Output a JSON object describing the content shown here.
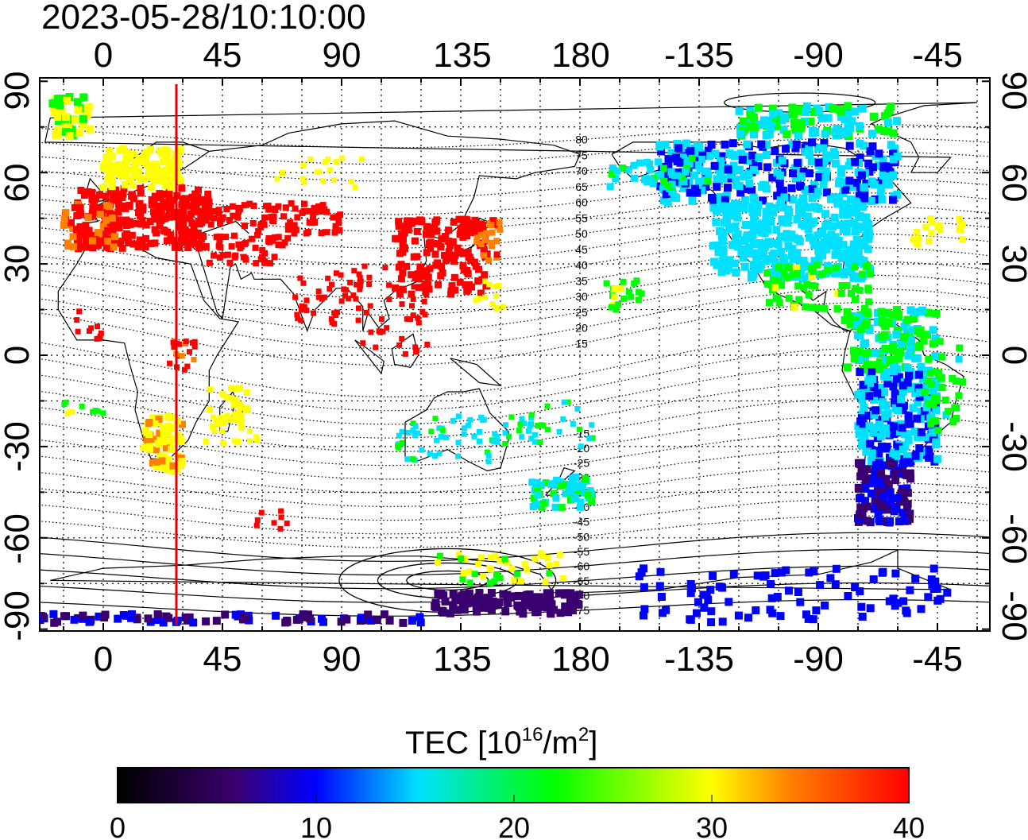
{
  "timestamp": "2023-05-28/10:10:00",
  "map": {
    "top_longitude_ticks": [
      "0",
      "45",
      "90",
      "135",
      "180",
      "-135",
      "-90",
      "-45"
    ],
    "bottom_longitude_ticks": [
      "0",
      "45",
      "90",
      "135",
      "180",
      "-135",
      "-90",
      "-45"
    ],
    "left_latitude_ticks": [
      "90",
      "60",
      "30",
      "0",
      "-30",
      "-60",
      "-90"
    ],
    "right_latitude_ticks": [
      "90",
      "60",
      "30",
      "0",
      "-30",
      "-60",
      "-90"
    ],
    "lon_range": [
      -25,
      335
    ],
    "lat_range": [
      -90,
      90
    ],
    "red_meridian_lon": 28,
    "contour_labels": {
      "north": [
        "80",
        "75",
        "70",
        "65",
        "60",
        "55",
        "50",
        "45",
        "40",
        "35",
        "30",
        "25",
        "20",
        "15"
      ],
      "south": [
        "-15",
        "-20",
        "-25",
        "-30",
        "-35",
        "-40",
        "-45",
        "-50",
        "-55",
        "-60",
        "-65",
        "-70",
        "-75"
      ]
    },
    "marker_color": "#e00000"
  },
  "colorbar": {
    "title_main": "TEC  [10",
    "title_exp1": "16",
    "title_mid": "/m",
    "title_exp2": "2",
    "title_end": "]",
    "ticks": [
      "0",
      "10",
      "20",
      "30",
      "40"
    ],
    "range": [
      0,
      40
    ],
    "stops": [
      "#000000",
      "#3a0070",
      "#0000ff",
      "#00ffff",
      "#00ff00",
      "#ffff00",
      "#ff7f00",
      "#ff0000"
    ]
  }
}
